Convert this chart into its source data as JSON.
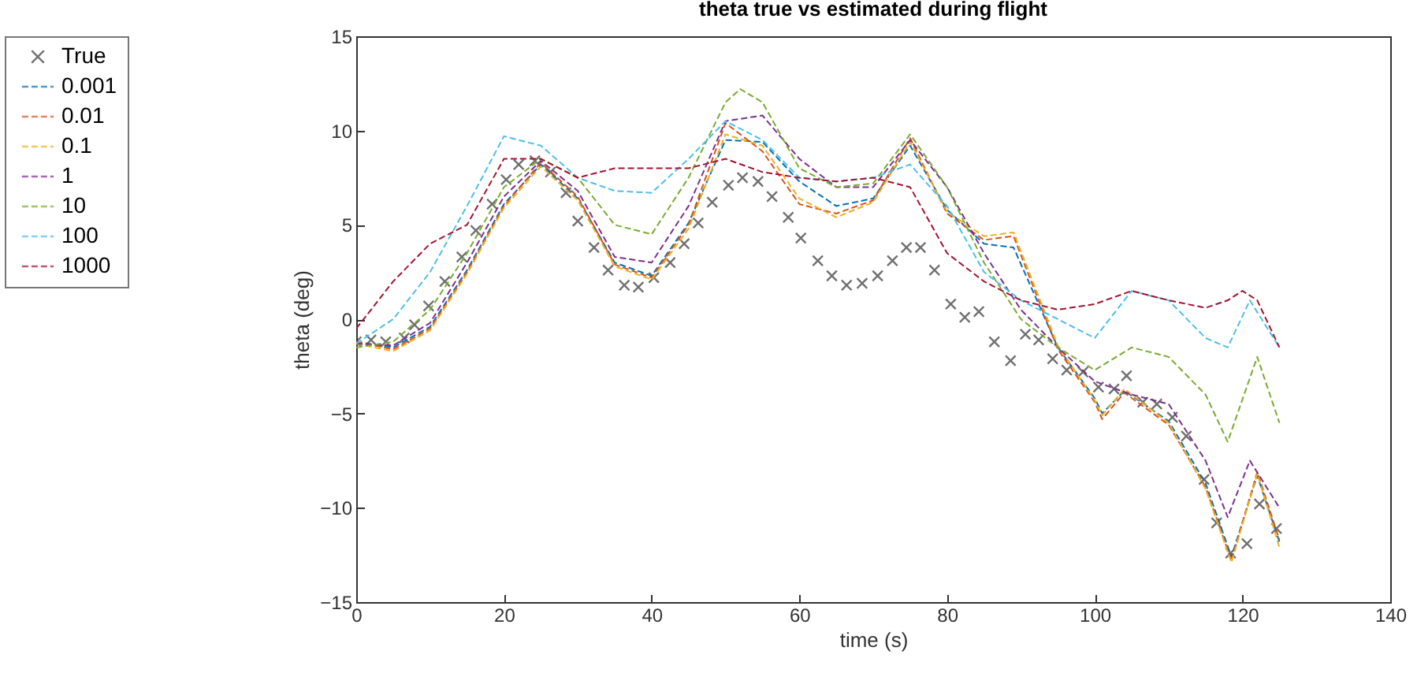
{
  "chart_data": {
    "type": "line",
    "title": "theta true vs estimated during flight",
    "xlabel": "time (s)",
    "ylabel": "theta (deg)",
    "xlim": [
      0,
      140
    ],
    "xticks": [
      0,
      20,
      40,
      60,
      80,
      100,
      120,
      140
    ],
    "ylim": [
      -15,
      15
    ],
    "yticks": [
      -15,
      -10,
      -5,
      0,
      5,
      10,
      15
    ],
    "grid": false,
    "legend": "left",
    "series": [
      {
        "name": "True",
        "type": "scatter",
        "marker": "cross",
        "color": "#333333",
        "x": [
          0,
          2,
          4,
          6.5,
          7.9,
          9.8,
          12,
          14.3,
          16.2,
          18.4,
          20.3,
          22,
          24.2,
          26.3,
          28.4,
          30,
          32.2,
          34.1,
          36.3,
          38.2,
          40.3,
          42.5,
          44.4,
          46.3,
          48.2,
          50.4,
          52.3,
          54.4,
          56.3,
          58.5,
          60.2,
          62.5,
          64.4,
          66.4,
          68.5,
          70.6,
          72.6,
          74.5,
          76.4,
          78.3,
          80.5,
          82.4,
          84.3,
          86.4,
          88.6,
          90.6,
          92.4,
          94.3,
          96.2,
          98.4,
          100.5,
          102.6,
          104.3,
          106.5,
          108.4,
          110.5,
          112.4,
          114.8,
          116.5,
          118.4,
          120.6,
          122.3,
          124.6
        ],
        "values": [
          -1.2,
          -1.1,
          -1.2,
          -1.0,
          -0.3,
          0.7,
          2.0,
          3.3,
          4.7,
          6.1,
          7.4,
          8.2,
          8.4,
          7.8,
          6.7,
          5.2,
          3.8,
          2.6,
          1.8,
          1.7,
          2.2,
          3.0,
          4.0,
          5.1,
          6.2,
          7.1,
          7.5,
          7.3,
          6.5,
          5.4,
          4.3,
          3.1,
          2.3,
          1.8,
          1.9,
          2.3,
          3.1,
          3.8,
          3.8,
          2.6,
          0.8,
          0.1,
          0.4,
          -1.2,
          -2.2,
          -0.8,
          -1.1,
          -2.1,
          -2.7,
          -2.8,
          -3.6,
          -3.7,
          -3.0,
          -4.4,
          -4.5,
          -5.2,
          -6.2,
          -8.5,
          -10.8,
          -12.4,
          -11.9,
          -9.8,
          -11.1
        ]
      },
      {
        "name": "0.001",
        "line_style": "dashed",
        "color": "#0072bd",
        "x": [
          0,
          5,
          10,
          15,
          20,
          25,
          30,
          35,
          40,
          45,
          50,
          55,
          60,
          65,
          70,
          75,
          80,
          85,
          89,
          95,
          100,
          101,
          104,
          110,
          115,
          118.5,
          122,
          125
        ],
        "values": [
          -1.2,
          -1.5,
          -0.4,
          2.6,
          6.1,
          8.2,
          6.4,
          3.0,
          2.3,
          5.1,
          9.5,
          9.4,
          7.3,
          6.0,
          6.4,
          9.2,
          5.8,
          4.0,
          3.8,
          -1.5,
          -4.2,
          -5.0,
          -3.8,
          -5.4,
          -8.7,
          -12.6,
          -8.3,
          -11.8
        ]
      },
      {
        "name": "0.01",
        "line_style": "dashed",
        "color": "#d95319",
        "x": [
          0,
          5,
          10,
          15,
          20,
          25,
          30,
          35,
          40,
          45,
          50,
          55,
          60,
          65,
          70,
          75,
          80,
          85,
          89,
          95,
          100,
          101,
          104,
          110,
          115,
          118.5,
          122,
          125
        ],
        "values": [
          -1.2,
          -1.6,
          -0.5,
          2.5,
          6.0,
          8.3,
          6.5,
          2.9,
          2.2,
          5.0,
          10.4,
          8.9,
          6.1,
          5.6,
          6.3,
          9.6,
          5.6,
          4.2,
          4.4,
          -1.6,
          -4.4,
          -5.3,
          -3.9,
          -5.6,
          -8.9,
          -12.8,
          -8.1,
          -11.7
        ]
      },
      {
        "name": "0.1",
        "line_style": "dashed",
        "color": "#edb120",
        "x": [
          0,
          5,
          10,
          15,
          20,
          25,
          30,
          35,
          40,
          45,
          50,
          55,
          60,
          65,
          70,
          75,
          80,
          85,
          89,
          95,
          100,
          101,
          104,
          110,
          115,
          118.5,
          122,
          125
        ],
        "values": [
          -1.3,
          -1.7,
          -0.6,
          2.4,
          5.9,
          8.1,
          6.3,
          2.8,
          2.1,
          4.8,
          9.8,
          9.2,
          6.4,
          5.4,
          6.2,
          9.4,
          5.7,
          4.4,
          4.6,
          -1.4,
          -4.3,
          -5.1,
          -3.7,
          -5.5,
          -9.0,
          -12.9,
          -8.2,
          -12.1
        ]
      },
      {
        "name": "1",
        "line_style": "dashed",
        "color": "#7e2f8e",
        "x": [
          0,
          5,
          10,
          15,
          20,
          25,
          30,
          35,
          40,
          45,
          50,
          55,
          60,
          65,
          70,
          75,
          80,
          85,
          90,
          95,
          100,
          105,
          110,
          115,
          118,
          121,
          125
        ],
        "values": [
          -1.3,
          -1.4,
          -0.2,
          3.0,
          6.5,
          8.4,
          6.8,
          3.3,
          3.0,
          6.0,
          10.5,
          10.8,
          8.5,
          7.0,
          7.0,
          9.5,
          7.0,
          3.5,
          0.5,
          -1.5,
          -3.3,
          -4.0,
          -4.5,
          -7.5,
          -10.5,
          -7.5,
          -10.0
        ]
      },
      {
        "name": "10",
        "line_style": "dashed",
        "color": "#77ac30",
        "x": [
          0,
          5,
          10,
          15,
          20,
          25,
          30,
          35,
          40,
          45,
          50,
          52,
          55,
          60,
          65,
          70,
          75,
          80,
          85,
          90,
          95,
          100,
          105,
          110,
          115,
          118,
          122,
          125
        ],
        "values": [
          -1.5,
          -1.2,
          0.5,
          3.5,
          7.0,
          8.5,
          7.5,
          5.0,
          4.5,
          7.5,
          11.5,
          12.2,
          11.5,
          8.0,
          7.0,
          7.2,
          9.8,
          7.0,
          3.0,
          0.0,
          -1.5,
          -2.7,
          -1.5,
          -2.0,
          -4.0,
          -6.5,
          -2.0,
          -5.5
        ]
      },
      {
        "name": "100",
        "line_style": "dashed",
        "color": "#4dbeee",
        "x": [
          0,
          5,
          10,
          15,
          20,
          25,
          30,
          35,
          40,
          45,
          50,
          55,
          60,
          65,
          70,
          75,
          80,
          85,
          90,
          95,
          100,
          105,
          110,
          115,
          118,
          121,
          125
        ],
        "values": [
          -1.3,
          0.0,
          2.5,
          6.0,
          9.7,
          9.2,
          7.5,
          6.8,
          6.7,
          8.5,
          10.5,
          9.5,
          7.5,
          7.3,
          7.5,
          8.2,
          6.0,
          2.5,
          1.0,
          0.0,
          -1.0,
          1.5,
          1.0,
          -1.0,
          -1.5,
          1.0,
          -1.5
        ]
      },
      {
        "name": "1000",
        "line_style": "dashed",
        "color": "#a2142f",
        "x": [
          0,
          5,
          10,
          15,
          20,
          25,
          30,
          35,
          40,
          45,
          50,
          55,
          60,
          65,
          70,
          75,
          80,
          85,
          90,
          95,
          100,
          105,
          110,
          115,
          118,
          120,
          122,
          125
        ],
        "values": [
          -0.5,
          2.0,
          4.0,
          5.0,
          8.5,
          8.5,
          7.5,
          8.0,
          8.0,
          8.0,
          8.5,
          7.8,
          7.5,
          7.3,
          7.5,
          7.0,
          3.5,
          2.0,
          1.0,
          0.5,
          0.8,
          1.5,
          1.0,
          0.6,
          1.0,
          1.5,
          1.0,
          -1.5
        ]
      }
    ]
  }
}
